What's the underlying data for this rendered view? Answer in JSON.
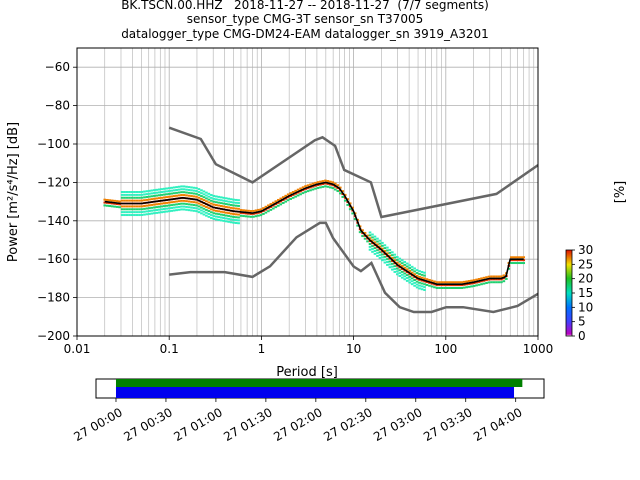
{
  "chart_data": {
    "type": "heatmap",
    "title_lines": [
      "BK.TSCN.00.HHZ   2018-11-27 -- 2018-11-27  (7/7 segments)",
      "sensor_type CMG-3T sensor_sn T37005",
      "datalogger_type CMG-DM24-EAM datalogger_sn 3919_A3201"
    ],
    "xlabel": "Period [s]",
    "ylabel": "Power [m²/s⁴/Hz] [dB]",
    "x_scale": "log",
    "xlim": [
      0.01,
      1000
    ],
    "ylim": [
      -200,
      -50
    ],
    "x_ticks": [
      0.01,
      0.1,
      1,
      10,
      100,
      1000
    ],
    "x_tick_labels": [
      "0.01",
      "0.1",
      "1",
      "10",
      "100",
      "1000"
    ],
    "y_ticks": [
      -200,
      -180,
      -160,
      -140,
      -120,
      -100,
      -80,
      -60
    ],
    "y_tick_labels": [
      "−200",
      "−180",
      "−160",
      "−140",
      "−120",
      "−100",
      "−80",
      "−60"
    ],
    "grid": true,
    "noise_models": {
      "color": "#666666",
      "nhnm": {
        "x": [
          0.1,
          0.22,
          0.32,
          0.8,
          3.8,
          4.6,
          6.3,
          7.9,
          15.4,
          20,
          354.8,
          1000
        ],
        "y": [
          -91.5,
          -97.4,
          -110.5,
          -120,
          -98,
          -96.5,
          -101,
          -113.5,
          -120,
          -138,
          -126,
          -111
        ]
      },
      "nlnm": {
        "x": [
          0.1,
          0.17,
          0.4,
          0.8,
          1.24,
          2.4,
          4.3,
          5,
          6,
          10,
          12,
          15.6,
          21.9,
          31.6,
          45,
          70,
          101,
          154,
          328,
          600,
          1000
        ],
        "y": [
          -168,
          -166.7,
          -166.7,
          -169.2,
          -163.7,
          -148.6,
          -141.1,
          -141.1,
          -149,
          -163.8,
          -166.2,
          -162,
          -177.5,
          -185,
          -187.5,
          -187.5,
          -185,
          -185,
          -187.5,
          -184.4,
          -178
        ]
      }
    },
    "median": {
      "color": "#000000",
      "x": [
        0.02,
        0.03,
        0.05,
        0.07,
        0.1,
        0.14,
        0.2,
        0.3,
        0.5,
        0.8,
        1.0,
        1.3,
        2,
        3,
        4,
        5,
        6,
        7,
        8,
        10,
        12,
        15,
        20,
        30,
        50,
        80,
        100,
        150,
        200,
        300,
        400,
        450,
        500,
        700
      ],
      "y": [
        -130,
        -131,
        -131,
        -130,
        -129,
        -128,
        -129,
        -133,
        -135,
        -136,
        -135,
        -132,
        -127,
        -123,
        -121,
        -120,
        -121,
        -123,
        -127,
        -135,
        -145,
        -150,
        -155,
        -163,
        -170,
        -173,
        -173,
        -173,
        -172,
        -170,
        -170,
        -169,
        -160,
        -160
      ]
    },
    "density": {
      "colorbar_label": "[%]",
      "range": [
        0,
        30
      ],
      "ticks": [
        0,
        5,
        10,
        15,
        20,
        25,
        30
      ],
      "colormap": "pqlx"
    },
    "timeline": {
      "tick_labels": [
        "27 00:00",
        "27 00:30",
        "27 01:00",
        "27 01:30",
        "27 02:00",
        "27 02:30",
        "27 03:00",
        "27 03:30",
        "27 04:00"
      ],
      "tick_minutes": [
        0,
        30,
        60,
        90,
        120,
        150,
        180,
        210,
        240
      ],
      "range_minutes": [
        -12,
        257
      ],
      "green_bar": [
        0,
        244
      ],
      "blue_bar": [
        0,
        239
      ],
      "green_color": "#008000",
      "blue_color": "#0000ee"
    }
  }
}
